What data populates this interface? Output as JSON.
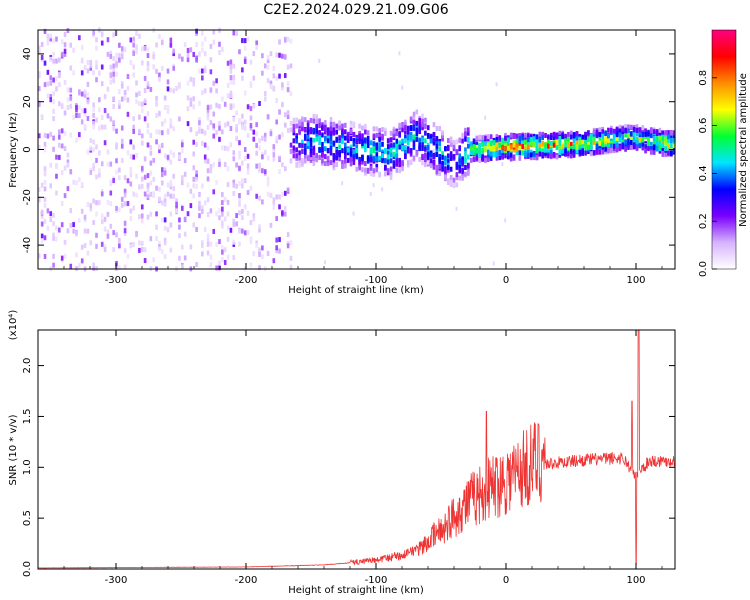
{
  "title": "C2E2.2024.029.21.09.G06",
  "chart_data": [
    {
      "type": "heatmap",
      "xlabel": "Height of straight line (km)",
      "ylabel": "Frequency (Hz)",
      "xlim": [
        -360,
        130
      ],
      "ylim": [
        -50,
        50
      ],
      "x_ticks": [
        -300,
        -200,
        -100,
        0,
        100
      ],
      "y_ticks": [
        -40,
        -20,
        0,
        20,
        40
      ],
      "colorbar": {
        "label": "Normalized spectral amplitude",
        "range": [
          0.0,
          1.0
        ],
        "ticks": [
          0.0,
          0.2,
          0.4,
          0.6,
          0.8
        ],
        "colors": [
          "#ffffff",
          "#d6b3ff",
          "#7a00ff",
          "#0000ff",
          "#00e5ff",
          "#00ff33",
          "#ffff00",
          "#ff8c00",
          "#ff0000",
          "#ff0080"
        ]
      },
      "ridge": [
        {
          "x": -180,
          "y": 2,
          "amp": 0.25
        },
        {
          "x": -150,
          "y": 4,
          "amp": 0.45
        },
        {
          "x": -120,
          "y": 1,
          "amp": 0.45
        },
        {
          "x": -90,
          "y": -2,
          "amp": 0.5
        },
        {
          "x": -70,
          "y": 6,
          "amp": 0.45
        },
        {
          "x": -50,
          "y": -2,
          "amp": 0.5
        },
        {
          "x": -40,
          "y": -6,
          "amp": 0.3
        },
        {
          "x": -30,
          "y": 0,
          "amp": 0.6
        },
        {
          "x": 0,
          "y": 1,
          "amp": 0.8
        },
        {
          "x": 50,
          "y": 2,
          "amp": 0.75
        },
        {
          "x": 95,
          "y": 5,
          "amp": 0.6
        },
        {
          "x": 130,
          "y": 2,
          "amp": 0.75
        }
      ]
    },
    {
      "type": "line",
      "xlabel": "Height of straight line (km)",
      "ylabel": "SNR (10 * v/v)",
      "multiplier": "(x10⁴)",
      "xlim": [
        -360,
        130
      ],
      "ylim": [
        0,
        2.35
      ],
      "x_ticks": [
        -300,
        -200,
        -100,
        0,
        100
      ],
      "y_ticks": [
        0.0,
        0.5,
        1.0,
        1.5,
        2.0
      ],
      "color": "#ee3333",
      "envelope": [
        {
          "x": -360,
          "y": 0.01
        },
        {
          "x": -200,
          "y": 0.02
        },
        {
          "x": -140,
          "y": 0.04
        },
        {
          "x": -100,
          "y": 0.08
        },
        {
          "x": -70,
          "y": 0.15
        },
        {
          "x": -50,
          "y": 0.35
        },
        {
          "x": -30,
          "y": 0.6
        },
        {
          "x": -10,
          "y": 0.75
        },
        {
          "x": 10,
          "y": 0.88
        },
        {
          "x": 30,
          "y": 1.02
        },
        {
          "x": 60,
          "y": 1.06
        },
        {
          "x": 90,
          "y": 1.08
        },
        {
          "x": 100,
          "y": 0.9
        },
        {
          "x": 110,
          "y": 1.05
        },
        {
          "x": 130,
          "y": 1.05
        }
      ],
      "spikes": [
        {
          "x": -15,
          "y": 1.55
        },
        {
          "x": 97,
          "y": 1.65
        },
        {
          "x": 100,
          "y": 2.35
        },
        {
          "x": 102,
          "y": 2.35
        },
        {
          "x": 100,
          "y": 0.05
        }
      ]
    }
  ]
}
